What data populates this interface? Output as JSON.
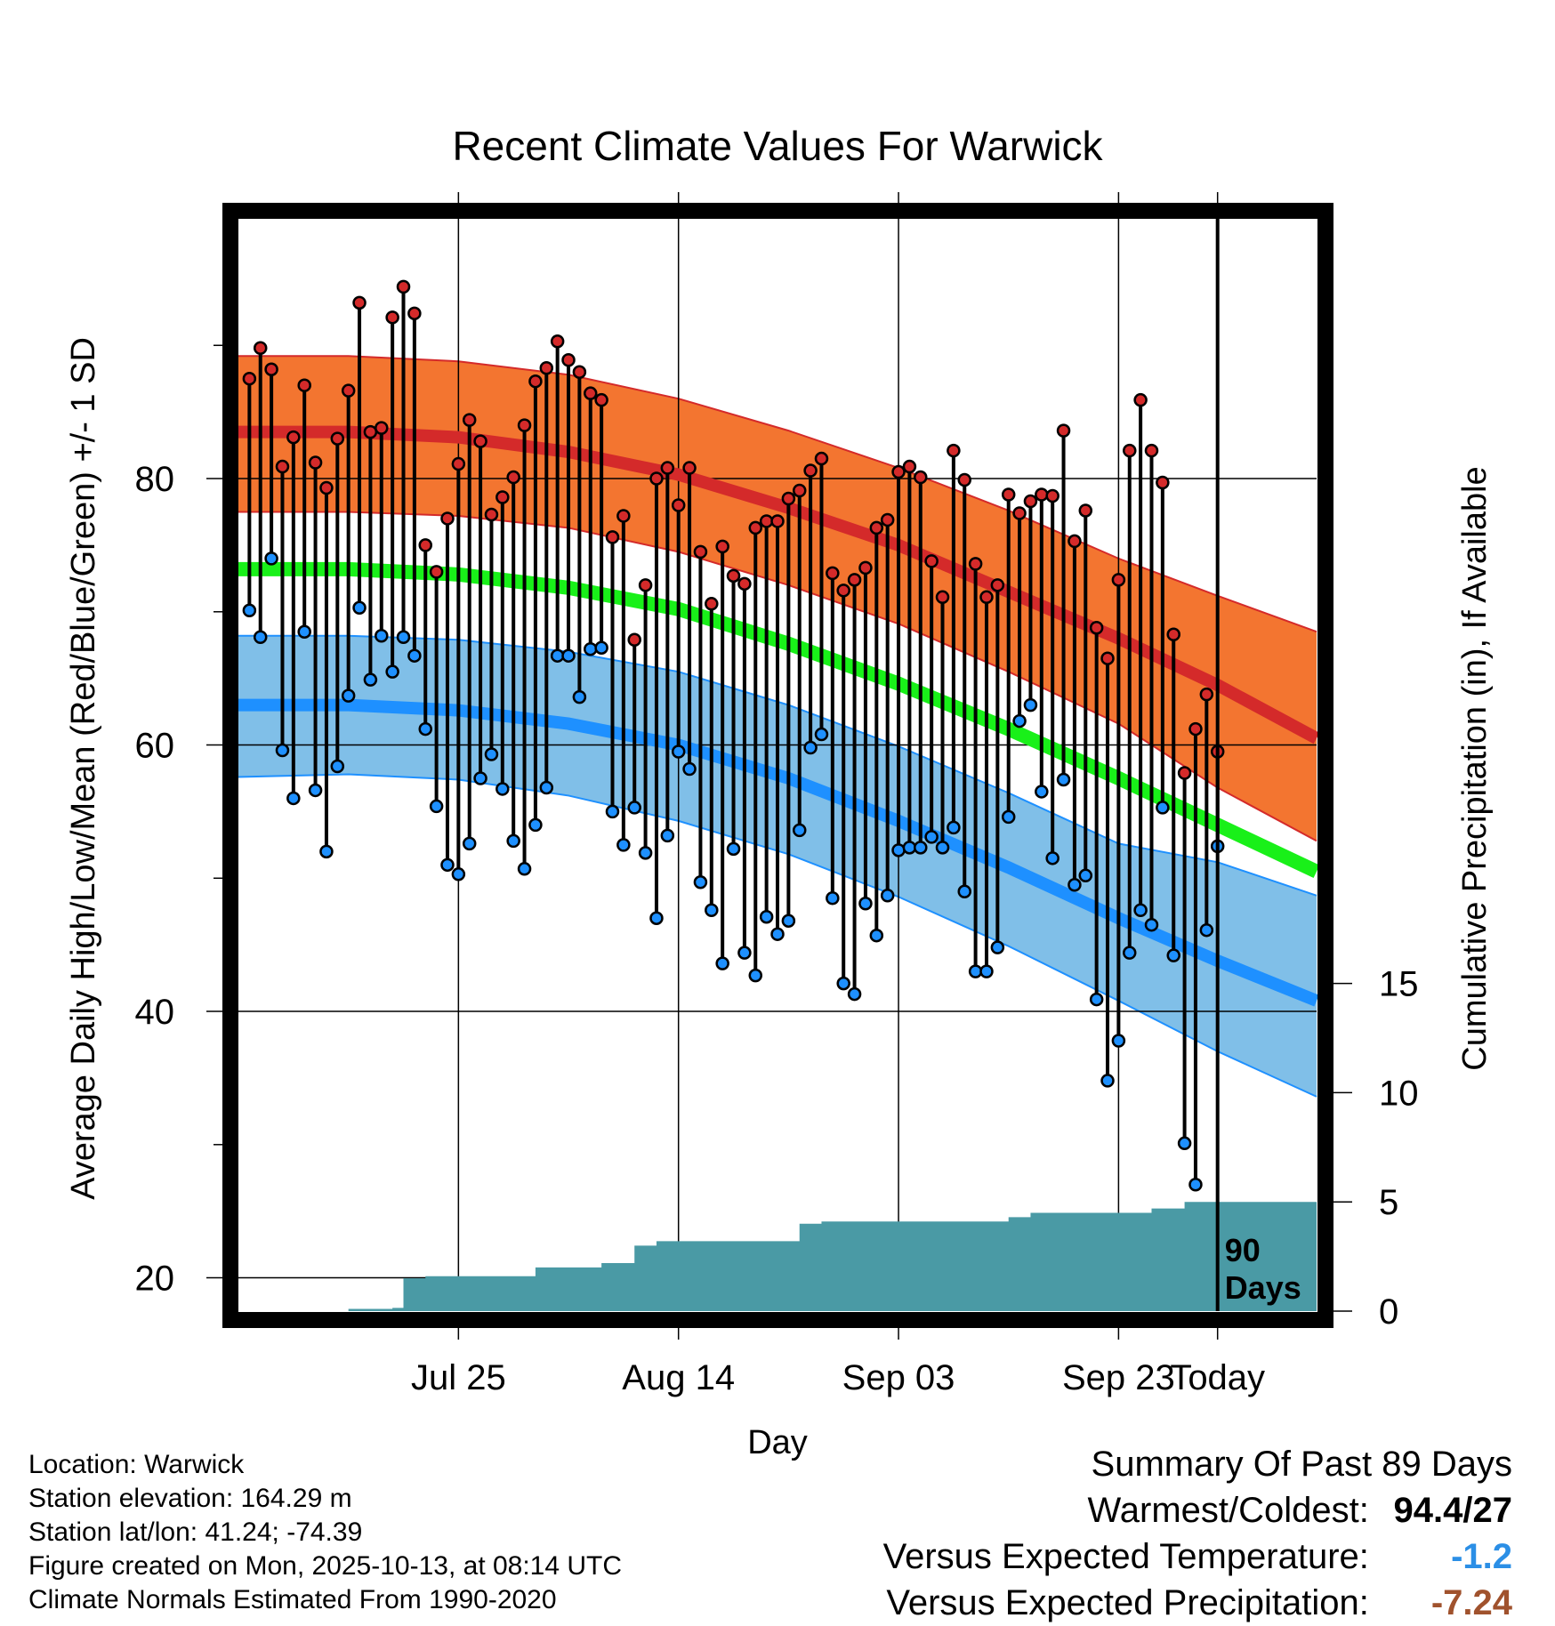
{
  "chart_data": {
    "type": "line",
    "title": "Recent Climate Values For Warwick",
    "xlabel": "Day",
    "ylabel": "Average Daily High/Low/Mean (Red/Blue/Green) +/- 1 SD",
    "y2label": "Cumulative Precipitation (in), If Available",
    "x_ticks": [
      "Jul 25",
      "Aug 14",
      "Sep 03",
      "Sep 23",
      "Today"
    ],
    "y_ticks": [
      20,
      40,
      60,
      80
    ],
    "y2_ticks": [
      0,
      5,
      10,
      15
    ],
    "ylim": [
      17.5,
      99.5
    ],
    "y2lim": [
      0,
      50
    ],
    "xlim": [
      -89,
      9
    ],
    "grid": true,
    "today_marker_label": [
      "90",
      "Days"
    ],
    "normals": {
      "day": [
        -89,
        -79,
        -69,
        -59,
        -49,
        -39,
        -29,
        -19,
        -9,
        0,
        9
      ],
      "high_mean": [
        83.5,
        83.5,
        83.1,
        82.0,
        80.3,
        77.8,
        75.0,
        71.5,
        68.0,
        64.5,
        60.5
      ],
      "high_upper": [
        89.2,
        89.2,
        88.8,
        87.8,
        86.0,
        83.6,
        80.8,
        77.6,
        74.0,
        71.2,
        68.5
      ],
      "high_lower": [
        77.5,
        77.5,
        77.2,
        76.3,
        74.5,
        72.0,
        69.1,
        65.5,
        61.6,
        56.8,
        52.8
      ],
      "mean_mean": [
        73.2,
        73.2,
        72.8,
        71.8,
        70.2,
        67.6,
        64.6,
        61.2,
        57.5,
        54.0,
        50.5
      ],
      "low_mean": [
        63.0,
        63.0,
        62.6,
        61.6,
        60.0,
        57.5,
        54.3,
        50.8,
        47.0,
        43.8,
        40.8
      ],
      "low_upper": [
        68.2,
        68.2,
        67.9,
        67.0,
        65.5,
        63.0,
        59.9,
        56.4,
        52.6,
        51.2,
        48.7
      ],
      "low_lower": [
        57.6,
        57.8,
        57.4,
        56.2,
        54.3,
        51.8,
        48.6,
        44.9,
        40.8,
        37.0,
        33.6
      ]
    },
    "series": [
      {
        "name": "Daily High",
        "values": [
          87.5,
          89.8,
          88.2,
          80.9,
          83.1,
          87.0,
          81.2,
          79.3,
          83.0,
          86.6,
          93.2,
          83.5,
          83.8,
          92.1,
          94.4,
          92.4,
          75.0,
          73.0,
          77.0,
          81.1,
          84.4,
          82.8,
          77.3,
          78.6,
          80.1,
          84.0,
          87.3,
          88.3,
          90.3,
          88.9,
          88.0,
          86.4,
          85.9,
          75.6,
          77.2,
          67.9,
          72.0,
          80.0,
          80.8,
          78.0,
          80.8,
          74.5,
          70.6,
          74.9,
          72.7,
          72.1,
          76.3,
          76.8,
          76.8,
          78.5,
          79.1,
          80.6,
          81.5,
          72.9,
          71.6,
          72.4,
          73.3,
          76.3,
          76.9,
          80.5,
          80.9,
          80.1,
          73.8,
          71.1,
          82.1,
          79.9,
          73.6,
          71.1,
          72.0,
          78.8,
          77.4,
          78.3,
          78.8,
          78.7,
          83.6,
          75.3,
          77.6,
          68.8,
          66.5,
          72.4,
          82.1,
          85.9,
          82.1,
          79.7,
          68.3,
          57.9,
          61.2,
          63.8,
          59.5
        ]
      },
      {
        "name": "Daily Low",
        "values": [
          70.1,
          68.1,
          74.0,
          59.6,
          56.0,
          68.5,
          56.6,
          52.0,
          58.4,
          63.7,
          70.3,
          64.9,
          68.2,
          65.5,
          68.1,
          66.7,
          61.2,
          55.4,
          51.0,
          50.3,
          52.6,
          57.5,
          59.3,
          56.7,
          52.8,
          50.7,
          54.0,
          56.8,
          66.7,
          66.7,
          63.6,
          67.2,
          67.3,
          55.0,
          52.5,
          55.3,
          51.9,
          47.0,
          53.2,
          59.5,
          58.2,
          49.7,
          47.6,
          43.6,
          52.2,
          44.4,
          42.7,
          47.1,
          45.8,
          46.8,
          53.6,
          59.8,
          60.8,
          48.5,
          42.1,
          41.3,
          48.1,
          45.7,
          48.7,
          52.1,
          52.3,
          52.3,
          53.1,
          52.3,
          53.8,
          49.0,
          43.0,
          43.0,
          44.8,
          54.6,
          61.8,
          63.0,
          56.5,
          51.5,
          57.4,
          49.5,
          50.2,
          40.9,
          34.8,
          37.8,
          44.4,
          47.6,
          46.5,
          55.3,
          44.2,
          30.1,
          27.0,
          46.1,
          52.4
        ]
      }
    ],
    "precip_steps": [
      {
        "day": -89,
        "value": 0.0
      },
      {
        "day": -79,
        "value": 0.1
      },
      {
        "day": -75,
        "value": 0.15
      },
      {
        "day": -74,
        "value": 1.5
      },
      {
        "day": -72,
        "value": 1.6
      },
      {
        "day": -62,
        "value": 2.0
      },
      {
        "day": -56,
        "value": 2.2
      },
      {
        "day": -53,
        "value": 3.0
      },
      {
        "day": -51,
        "value": 3.2
      },
      {
        "day": -38,
        "value": 4.0
      },
      {
        "day": -36,
        "value": 4.1
      },
      {
        "day": -19,
        "value": 4.3
      },
      {
        "day": -17,
        "value": 4.5
      },
      {
        "day": -6,
        "value": 4.7
      },
      {
        "day": -3,
        "value": 5.0
      },
      {
        "day": 9,
        "value": 5.0
      }
    ],
    "colors": {
      "high_band": "#f37530",
      "high_edge": "#d42a2a",
      "high_line": "#d42a2a",
      "mean_line": "#19f019",
      "low_band": "#80bfe8",
      "low_edge": "#1e90ff",
      "low_line": "#1e90ff",
      "precip": "#4a9aa5",
      "high_dot": "#d42a2a",
      "low_dot": "#1e90ff"
    }
  },
  "info": [
    "Location: Warwick",
    "Station elevation: 164.29 m",
    "Station lat/lon: 41.24; -74.39",
    "Figure created on Mon, 2025-10-13, at 08:14 UTC",
    "Climate Normals Estimated From 1990-2020"
  ],
  "summary": {
    "heading": "Summary Of Past 89 Days",
    "rows": [
      {
        "label": "Warmest/Coldest:",
        "value": "94.4/27",
        "color": "#000000"
      },
      {
        "label": "Versus Expected Temperature:",
        "value": "-1.2",
        "color": "#2b8fe6"
      },
      {
        "label": "Versus Expected Precipitation:",
        "value": "-7.24",
        "color": "#a0522d"
      }
    ]
  }
}
